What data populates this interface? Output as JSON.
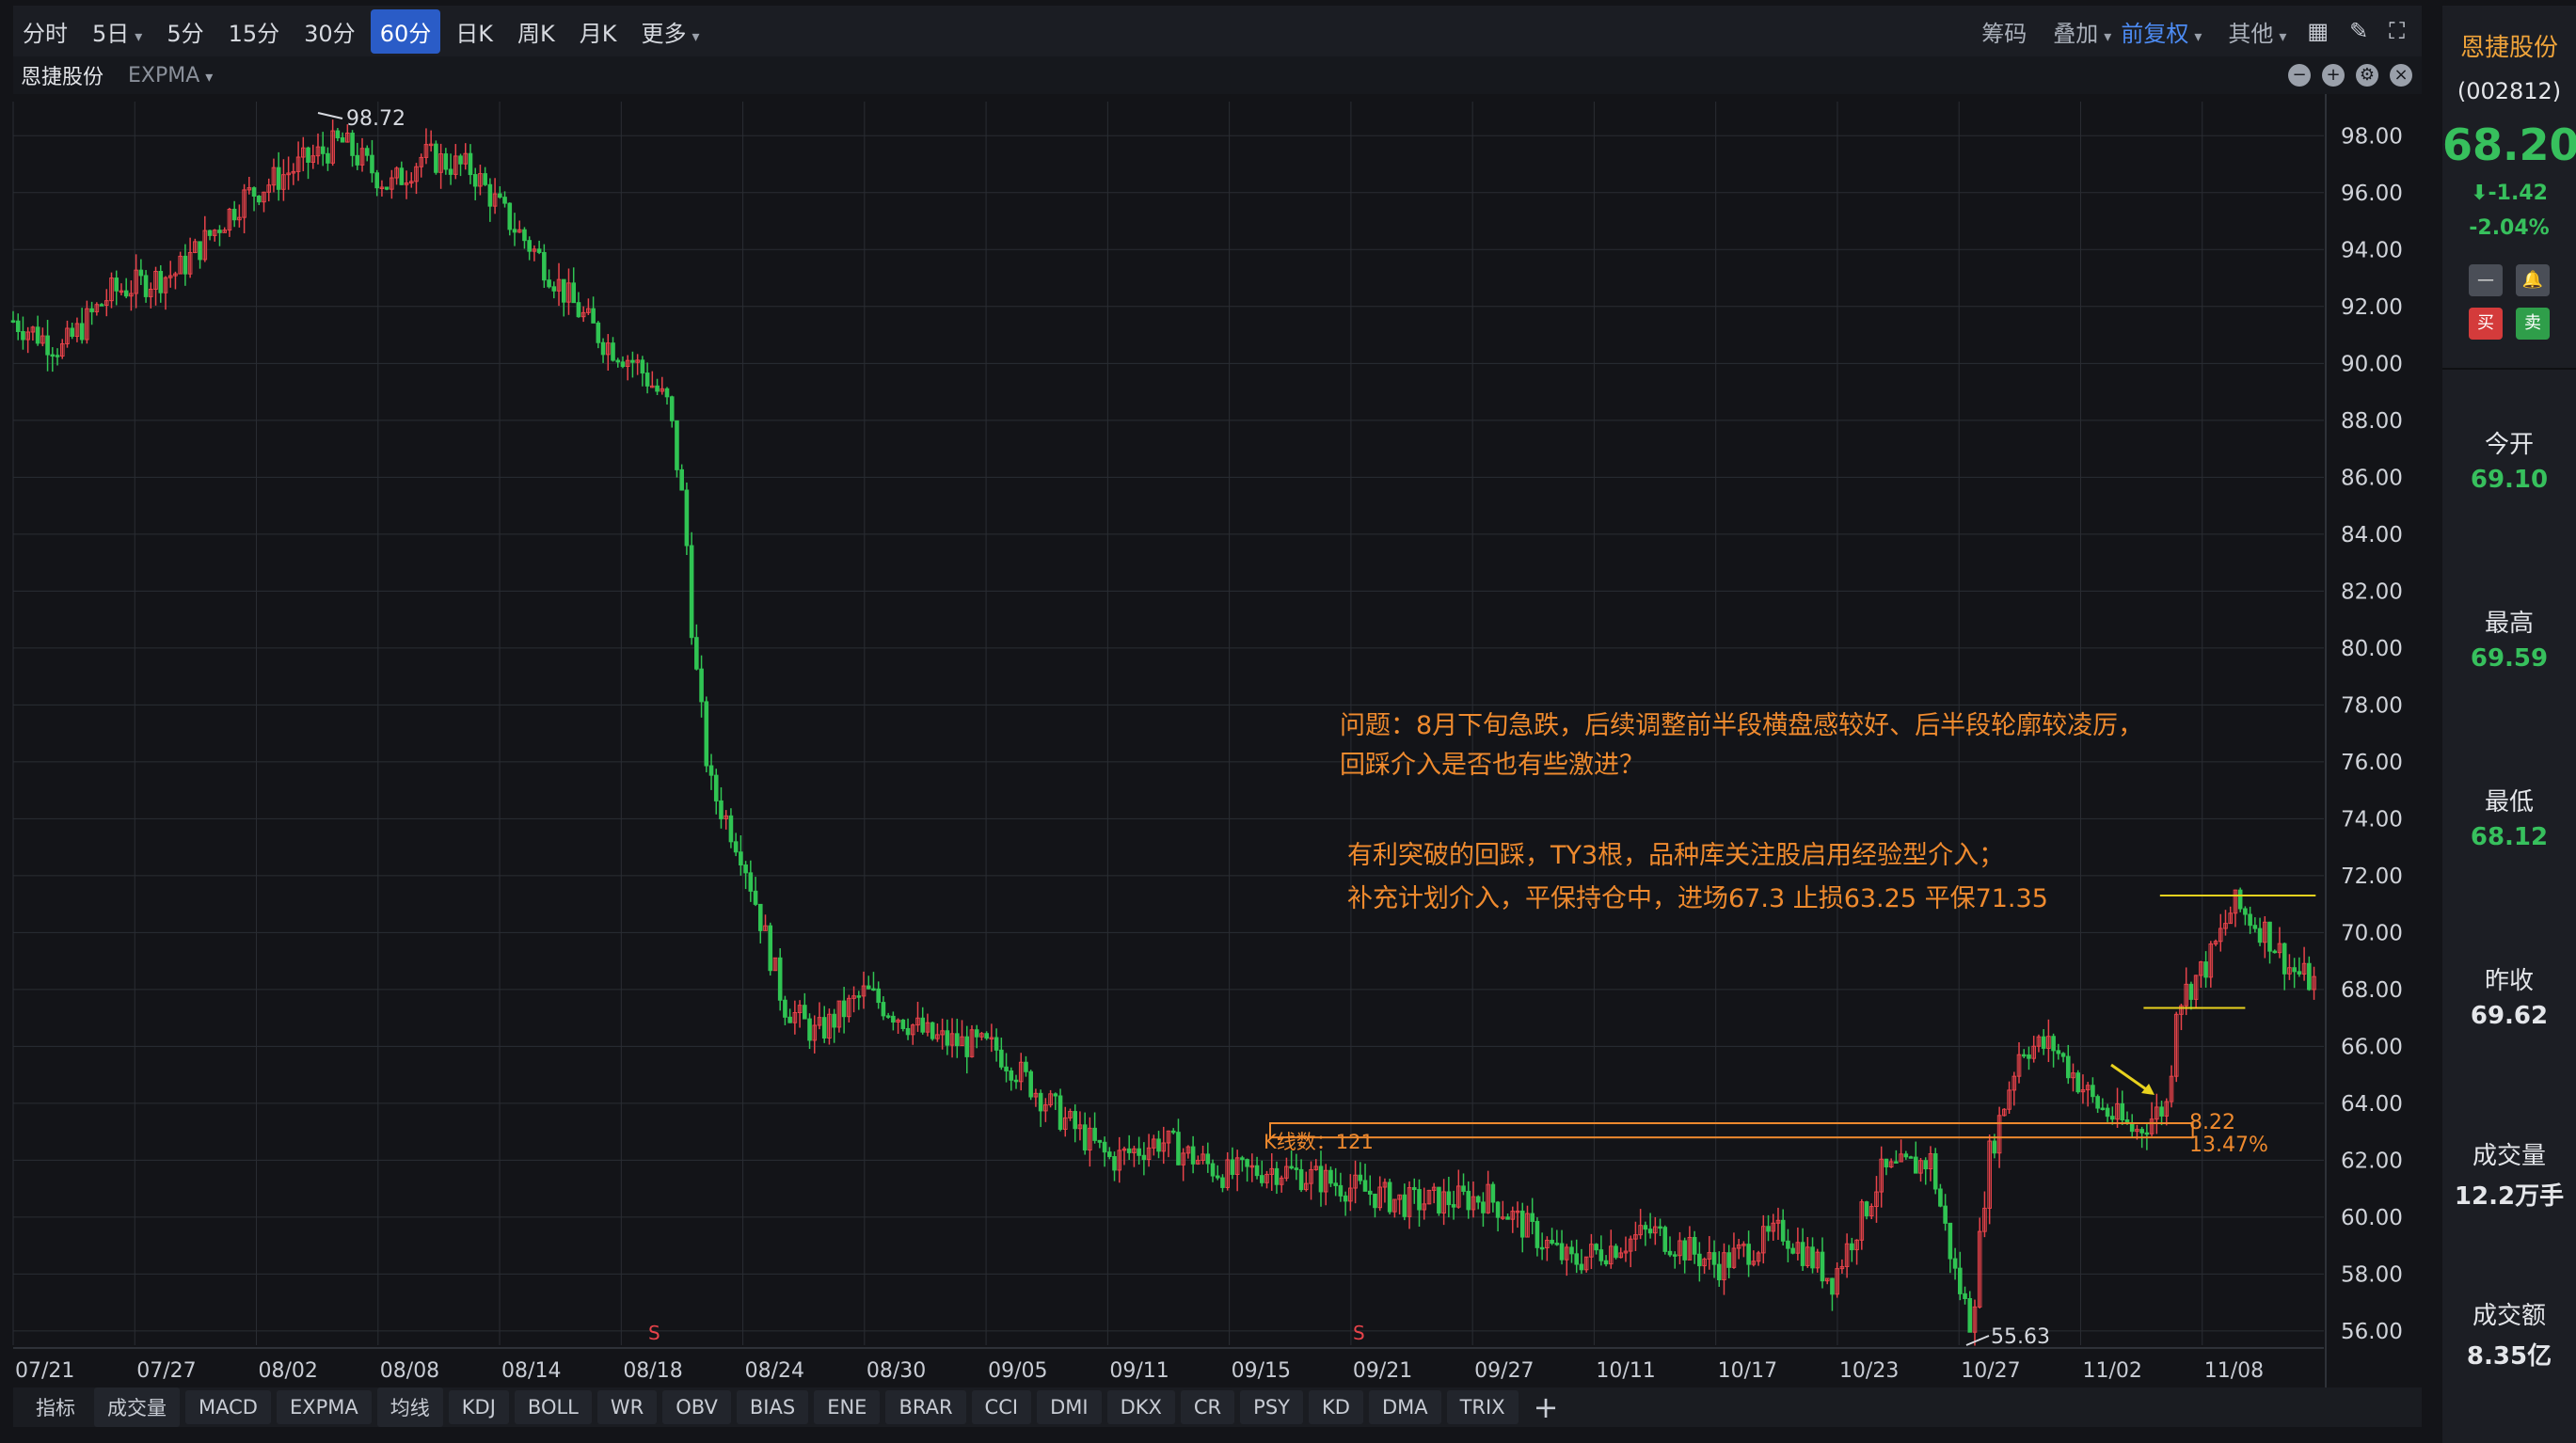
{
  "toolbar": {
    "timeframes": [
      "分时",
      "5日",
      "5分",
      "15分",
      "30分",
      "60分",
      "日K",
      "周K",
      "月K",
      "更多"
    ],
    "active_timeframe": "60分",
    "right_tools": {
      "chips": "筹码",
      "overlay": "叠加",
      "adjust": "前复权",
      "other": "其他"
    }
  },
  "subbar": {
    "stock_name": "恩捷股份",
    "indicator": "EXPMA"
  },
  "chart_data": {
    "type": "candlestick",
    "y_ticks": [
      "98.00",
      "96.00",
      "94.00",
      "92.00",
      "90.00",
      "88.00",
      "86.00",
      "84.00",
      "82.00",
      "80.00",
      "78.00",
      "76.00",
      "74.00",
      "72.00",
      "70.00",
      "68.00",
      "66.00",
      "64.00",
      "62.00",
      "60.00",
      "58.00",
      "56.00"
    ],
    "ylim": [
      55.5,
      99.2
    ],
    "x_ticks": [
      "07/21",
      "07/27",
      "08/02",
      "08/08",
      "08/14",
      "08/18",
      "08/24",
      "08/30",
      "09/05",
      "09/11",
      "09/15",
      "09/21",
      "09/27",
      "10/11",
      "10/17",
      "10/23",
      "10/27",
      "11/02",
      "11/08"
    ],
    "high_label": "98.72",
    "low_label": "55.63",
    "signal_markers": [
      "S",
      "S"
    ],
    "anchors": [
      [
        0,
        91.5
      ],
      [
        30,
        90.5
      ],
      [
        60,
        92.5
      ],
      [
        100,
        93.2
      ],
      [
        140,
        95.8
      ],
      [
        170,
        96.8
      ],
      [
        200,
        97.8
      ],
      [
        230,
        96.2
      ],
      [
        250,
        97.3
      ],
      [
        280,
        96.8
      ],
      [
        300,
        95.2
      ],
      [
        320,
        93.8
      ],
      [
        340,
        92.2
      ],
      [
        360,
        90.8
      ],
      [
        380,
        90.0
      ],
      [
        400,
        88.5
      ],
      [
        410,
        84.5
      ],
      [
        415,
        80.0
      ],
      [
        425,
        75.2
      ],
      [
        445,
        72.8
      ],
      [
        470,
        67.5
      ],
      [
        490,
        66.4
      ],
      [
        520,
        67.9
      ],
      [
        560,
        66.3
      ],
      [
        600,
        65.9
      ],
      [
        640,
        63.5
      ],
      [
        670,
        62.0
      ],
      [
        700,
        62.7
      ],
      [
        740,
        61.5
      ],
      [
        770,
        61.7
      ],
      [
        800,
        61.3
      ],
      [
        850,
        60.5
      ],
      [
        900,
        60.7
      ],
      [
        950,
        58.4
      ],
      [
        1000,
        59.5
      ],
      [
        1040,
        58.3
      ],
      [
        1080,
        59.5
      ],
      [
        1110,
        57.8
      ],
      [
        1140,
        61.5
      ],
      [
        1170,
        62.0
      ],
      [
        1185,
        58.0
      ],
      [
        1195,
        56.2
      ],
      [
        1205,
        62.0
      ],
      [
        1225,
        66.0
      ],
      [
        1245,
        66.0
      ],
      [
        1270,
        64.0
      ],
      [
        1295,
        63.0
      ],
      [
        1315,
        64.0
      ],
      [
        1320,
        67.5
      ],
      [
        1340,
        69.0
      ],
      [
        1355,
        71.0
      ],
      [
        1375,
        70.0
      ],
      [
        1390,
        68.7
      ],
      [
        1405,
        68.2
      ]
    ],
    "range_box": {
      "top": 63.3,
      "bottom": 62.8,
      "start_index": 767,
      "end_index": 1330,
      "label": "K线数：121",
      "value_label": "8.22",
      "pct_label": "13.47%"
    },
    "lines": [
      {
        "price": 71.3,
        "from": 1310,
        "to": 1405
      },
      {
        "price": 67.35,
        "from": 1300,
        "to": 1362
      }
    ],
    "annotations": {
      "line1": "问题：8月下旬急跌，后续调整前半段横盘感较好、后半段轮廓较凌厉，",
      "line2": "回踩介入是否也有些激进？",
      "line3": "有利突破的回踩，TY3根，品种库关注股启用经验型介入；",
      "line4": "补充计划介入，平保持仓中，进场67.3 止损63.25 平保71.35"
    },
    "colors": {
      "up": "#e8434a",
      "down": "#30c453",
      "annotation": "#ef8a2e",
      "line": "#e8d21e",
      "grid": "#2a2d33",
      "background": "#131418"
    }
  },
  "indicators": [
    "指标",
    "成交量",
    "MACD",
    "EXPMA",
    "均线",
    "KDJ",
    "BOLL",
    "WR",
    "OBV",
    "BIAS",
    "ENE",
    "BRAR",
    "CCI",
    "DMI",
    "DKX",
    "CR",
    "PSY",
    "KD",
    "DMA",
    "TRIX"
  ],
  "side": {
    "name": "恩捷股份",
    "code": "(002812)",
    "price": "68.20",
    "change": "-1.42",
    "change_pct": "-2.04%",
    "stats": [
      {
        "label": "今开",
        "value": "69.10"
      },
      {
        "label": "最高",
        "value": "69.59"
      },
      {
        "label": "最低",
        "value": "68.12"
      },
      {
        "label": "昨收",
        "value": "69.62"
      },
      {
        "label": "成交量",
        "value": "12.2万手"
      },
      {
        "label": "成交额",
        "value": "8.35亿"
      }
    ]
  }
}
